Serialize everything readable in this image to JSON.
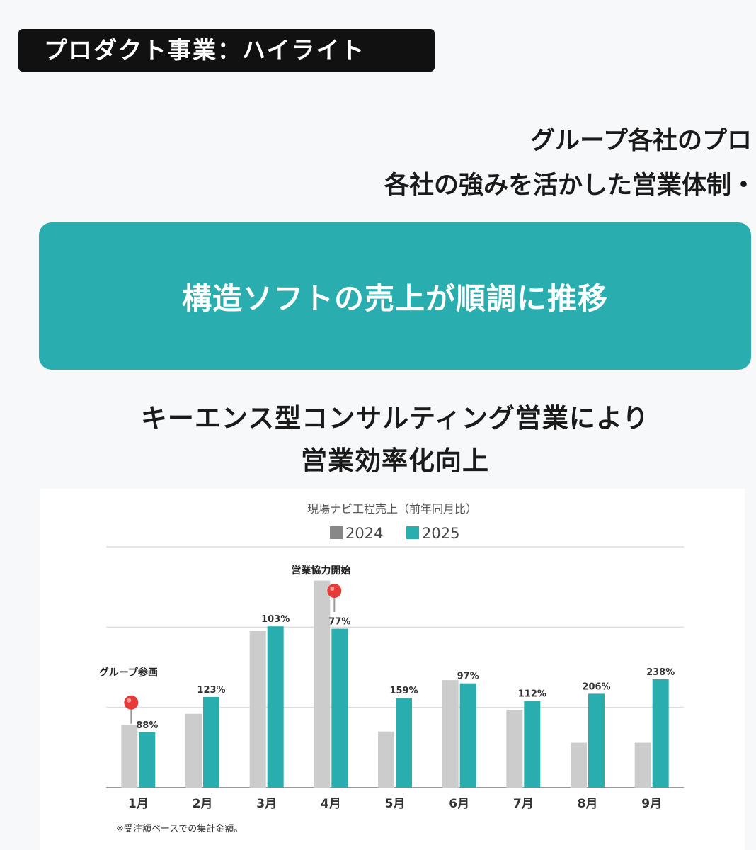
{
  "header": {
    "section_label": "プロダクト事業：ハイライト"
  },
  "intro": {
    "line1": "グループ各社のプロ",
    "line2": "各社の強みを活かした営業体制・"
  },
  "banner": {
    "text": "構造ソフトの売上が順調に推移"
  },
  "subheading": {
    "line1": "キーエンス型コンサルティング営業により",
    "line2": "営業効率化向上"
  },
  "colors": {
    "accent": "#2aadaf",
    "series_2024": "#cccccc",
    "series_2025": "#2aadaf",
    "marker": "#e63b3b"
  },
  "chart_data": {
    "type": "bar",
    "title": "現場ナビ工程売上（前年同月比）",
    "categories": [
      "1月",
      "2月",
      "3月",
      "4月",
      "5月",
      "6月",
      "7月",
      "8月",
      "9月"
    ],
    "series": [
      {
        "name": "2024",
        "values": [
          0.78,
          0.92,
          1.95,
          2.58,
          0.7,
          1.34,
          0.97,
          0.56,
          0.56
        ]
      },
      {
        "name": "2025",
        "values": [
          0.69,
          1.13,
          2.01,
          1.98,
          1.12,
          1.3,
          1.08,
          1.17,
          1.35
        ]
      }
    ],
    "data_labels": [
      "88%",
      "123%",
      "103%",
      "77%",
      "159%",
      "97%",
      "112%",
      "206%",
      "238%"
    ],
    "ylim": [
      0,
      3
    ],
    "grid": true,
    "legend": "top-center",
    "annotations": [
      {
        "category": "1月",
        "text": "グループ参画"
      },
      {
        "category": "4月",
        "text": "営業協力開始"
      }
    ],
    "footnote": "※受注額ベースでの集計金額。"
  }
}
